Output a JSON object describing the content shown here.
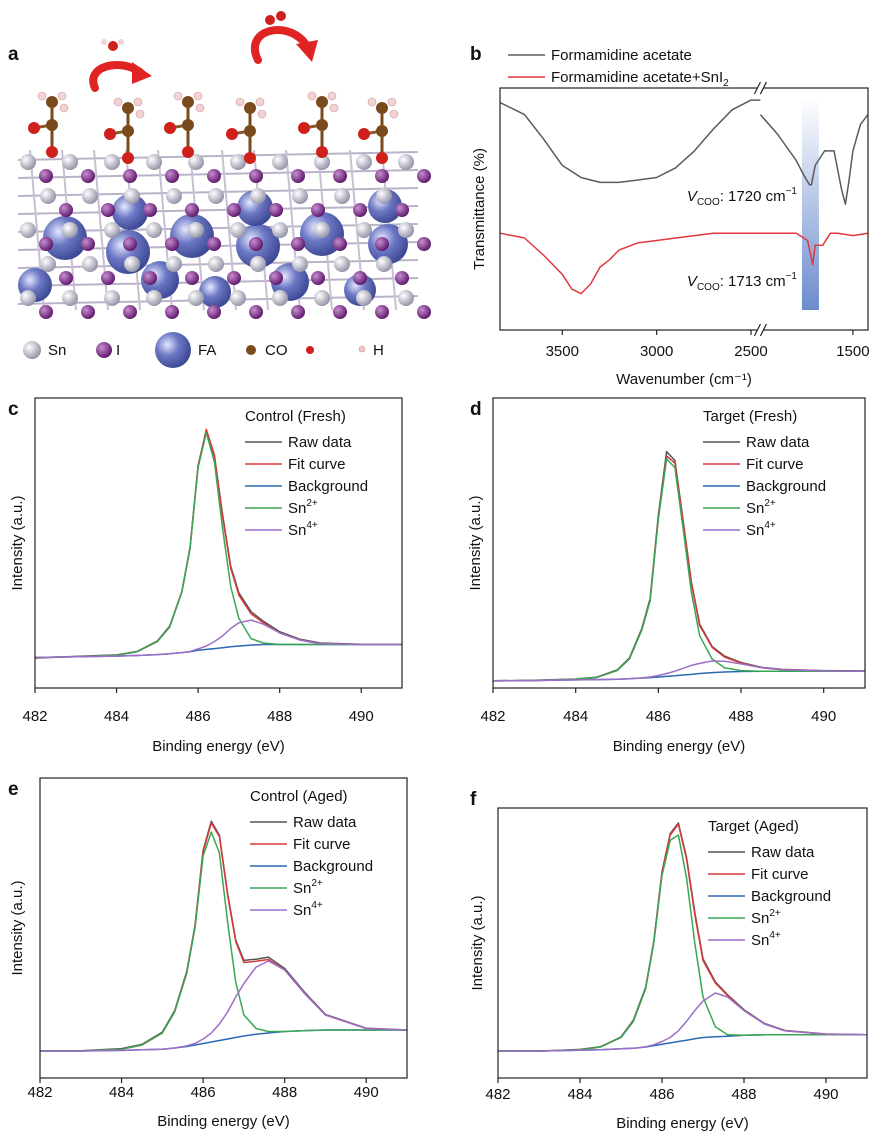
{
  "panel_a": {
    "label": "a",
    "legend": [
      "Sn",
      "I",
      "FA",
      "CO",
      "H"
    ]
  },
  "chart_data": [
    {
      "type": "line",
      "panel": "b",
      "ylabel": "Transmittance (%)",
      "xlabel": "Wavenumber (cm⁻¹)",
      "x_segments": [
        [
          3830,
          2450
        ],
        [
          1990,
          1420
        ]
      ],
      "xticks": [
        3500,
        3000,
        2500,
        1500
      ],
      "ylim": [
        0,
        100
      ],
      "band": [
        1770,
        1680
      ],
      "band_color": "#5b7fc8",
      "series": [
        {
          "name": "Formamidine acetate",
          "color": "#5a5a5a",
          "x": [
            3830,
            3700,
            3600,
            3500,
            3400,
            3300,
            3200,
            3100,
            3000,
            2900,
            2800,
            2700,
            2600,
            2500,
            2450,
            1990,
            1900,
            1800,
            1760,
            1730,
            1720,
            1700,
            1650,
            1600,
            1560,
            1540,
            1520,
            1500,
            1460,
            1420
          ],
          "values": [
            94,
            89,
            79,
            68,
            63,
            61,
            61,
            62,
            63,
            67,
            74,
            83,
            91,
            95,
            95,
            89,
            81,
            70,
            64,
            60,
            60,
            68,
            74,
            74,
            58,
            52,
            62,
            74,
            85,
            89
          ]
        },
        {
          "name": "Formamidine acetate+SnI",
          "name_sub": "2",
          "color": "#e0393e",
          "x": [
            3830,
            3700,
            3600,
            3500,
            3450,
            3400,
            3350,
            3300,
            3250,
            3200,
            3100,
            3000,
            2900,
            2700,
            2450,
            1990,
            1800,
            1740,
            1713,
            1700,
            1660,
            1620,
            1580,
            1500,
            1420
          ],
          "values": [
            40,
            38,
            31,
            23,
            17,
            15,
            19,
            26,
            29,
            33,
            36,
            37,
            38,
            40,
            40,
            40,
            40,
            37,
            27,
            35,
            35,
            40,
            40,
            39,
            40
          ]
        }
      ],
      "annotations": [
        {
          "symbol": "V",
          "sub": "COO",
          "text": ": 1720 cm",
          "sup": "−1"
        },
        {
          "symbol": "V",
          "sub": "COO",
          "text": ": 1713 cm",
          "sup": "−1"
        }
      ]
    },
    {
      "type": "line",
      "panel": "c",
      "title": "Control (Fresh)",
      "ylabel": "Intensity (a.u.)",
      "xlabel": "Binding energy (eV)",
      "xlim": [
        482,
        491
      ],
      "xticks": [
        482,
        484,
        486,
        488,
        490
      ],
      "ylim": [
        0,
        100
      ],
      "x": [
        482,
        483,
        484,
        484.5,
        485,
        485.3,
        485.6,
        485.8,
        486,
        486.2,
        486.4,
        486.6,
        486.8,
        487,
        487.3,
        487.6,
        488,
        488.5,
        489,
        490,
        491
      ],
      "series": [
        {
          "name": "Raw data",
          "color": "#555555",
          "values": [
            10.3,
            10.9,
            11.4,
            12.6,
            16.2,
            21.3,
            33.2,
            48.5,
            76.8,
            88.6,
            80,
            59.8,
            42,
            32.8,
            26.3,
            23,
            19.4,
            16.8,
            15.5,
            15.1,
            15
          ]
        },
        {
          "name": "Fit curve",
          "color": "#d9383a",
          "values": [
            10.5,
            10.8,
            11.3,
            12.5,
            16,
            21,
            33,
            48.1,
            76.5,
            89.2,
            80.4,
            59.1,
            41.3,
            32,
            25.6,
            22.5,
            19,
            16.5,
            15.3,
            15,
            15
          ]
        },
        {
          "name": "Background",
          "color": "#2b68b0",
          "values": [
            10.5,
            10.8,
            11,
            11.2,
            11.5,
            11.8,
            12.2,
            12.5,
            13,
            13.3,
            13.6,
            13.9,
            14.2,
            14.5,
            14.8,
            15,
            15,
            15,
            15,
            15,
            15
          ]
        },
        {
          "name": "Sn",
          "name_sup": "2+",
          "color": "#3aa655",
          "values": [
            10.5,
            10.8,
            11.3,
            12.5,
            16,
            21,
            33,
            48,
            76,
            88,
            78,
            55,
            35,
            24,
            17,
            15.5,
            15,
            15,
            15,
            15,
            15
          ]
        },
        {
          "name": "Sn",
          "name_sup": "4+",
          "color": "#9b6fc7",
          "values": [
            10.5,
            10.8,
            11,
            11.2,
            11.5,
            11.8,
            12.2,
            12.6,
            13.5,
            14.5,
            16,
            18,
            20.5,
            22.5,
            23.4,
            22,
            19,
            16.5,
            15.3,
            15,
            15
          ]
        }
      ]
    },
    {
      "type": "line",
      "panel": "d",
      "title": "Target (Fresh)",
      "ylabel": "Intensity (a.u.)",
      "xlabel": "Binding energy (eV)",
      "xlim": [
        482,
        491
      ],
      "xticks": [
        482,
        484,
        486,
        488,
        490
      ],
      "ylim": [
        0,
        100
      ],
      "x": [
        482,
        483,
        484,
        484.5,
        485,
        485.3,
        485.6,
        485.8,
        486,
        486.2,
        486.4,
        486.6,
        486.8,
        487,
        487.3,
        487.6,
        488,
        488.5,
        489,
        490,
        491
      ],
      "series": [
        {
          "name": "Raw data",
          "color": "#555555",
          "values": [
            2.4,
            2.7,
            3.1,
            3.7,
            6.2,
            10.3,
            20.5,
            30.8,
            59.5,
            81.5,
            78.5,
            57.8,
            36.5,
            22,
            14.3,
            11,
            8.8,
            7.1,
            6.4,
            6,
            5.9
          ]
        },
        {
          "name": "Fit curve",
          "color": "#d9383a",
          "values": [
            2.5,
            2.6,
            3,
            3.6,
            6,
            10,
            20.1,
            30.2,
            58.5,
            80,
            77.6,
            57.3,
            36.1,
            21.5,
            14,
            10.7,
            8.6,
            7,
            6.3,
            5.9,
            5.8
          ]
        },
        {
          "name": "Background",
          "color": "#2b68b0",
          "values": [
            2.5,
            2.6,
            2.8,
            2.9,
            3,
            3.2,
            3.4,
            3.6,
            3.8,
            4,
            4.2,
            4.5,
            4.7,
            5,
            5.3,
            5.5,
            5.7,
            5.8,
            5.8,
            5.8,
            5.8
          ]
        },
        {
          "name": "Sn",
          "name_sup": "2+",
          "color": "#3aa655",
          "values": [
            2.5,
            2.6,
            3,
            3.6,
            6,
            10,
            20,
            30,
            58,
            79,
            76,
            55,
            33,
            18,
            10,
            7,
            6,
            5.8,
            5.8,
            5.8,
            5.8
          ]
        },
        {
          "name": "Sn",
          "name_sup": "4+",
          "color": "#9b6fc7",
          "values": [
            2.5,
            2.6,
            2.8,
            2.9,
            3,
            3.2,
            3.5,
            3.8,
            4.3,
            5,
            5.8,
            6.8,
            7.8,
            8.5,
            9.3,
            9.2,
            8.3,
            7,
            6.3,
            5.9,
            5.8
          ]
        }
      ]
    },
    {
      "type": "line",
      "panel": "e",
      "title": "Control (Aged)",
      "ylabel": "Intensity (a.u.)",
      "xlabel": "Binding energy (eV)",
      "xlim": [
        482,
        491
      ],
      "xticks": [
        482,
        484,
        486,
        488,
        490
      ],
      "ylim": [
        0,
        100
      ],
      "x": [
        482,
        483,
        484,
        484.5,
        485,
        485.3,
        485.6,
        485.8,
        486,
        486.2,
        486.4,
        486.6,
        486.8,
        487,
        487.3,
        487.6,
        488,
        488.5,
        489,
        490,
        491
      ],
      "series": [
        {
          "name": "Raw data",
          "color": "#555555",
          "values": [
            8.9,
            9.1,
            9.8,
            11.2,
            15.3,
            22.4,
            35.6,
            50.8,
            75.9,
            85.6,
            80.9,
            61.5,
            46,
            39.2,
            39.6,
            40.3,
            36.5,
            28.4,
            21.2,
            16.6,
            16
          ]
        },
        {
          "name": "Fit curve",
          "color": "#d9383a",
          "values": [
            9,
            9,
            9.6,
            11,
            15,
            22,
            35.2,
            50.5,
            75.5,
            85,
            80.5,
            61,
            45.5,
            38.5,
            38.9,
            39.5,
            36,
            28,
            21,
            16.5,
            16
          ]
        },
        {
          "name": "Background",
          "color": "#2b68b0",
          "values": [
            9,
            9,
            9.2,
            9.4,
            9.6,
            10,
            10.5,
            11,
            11.5,
            12,
            12.5,
            13,
            13.5,
            14,
            14.6,
            15,
            15.5,
            15.8,
            16,
            16,
            16
          ]
        },
        {
          "name": "Sn",
          "name_sup": "2+",
          "color": "#3aa655",
          "values": [
            9,
            9,
            9.6,
            11,
            15,
            22,
            35,
            50,
            74,
            82,
            75,
            52,
            32,
            21,
            16.5,
            15.5,
            15.5,
            15.8,
            16,
            16,
            16
          ]
        },
        {
          "name": "Sn",
          "name_sup": "4+",
          "color": "#9b6fc7",
          "values": [
            9,
            9,
            9.2,
            9.4,
            9.6,
            10,
            10.7,
            11.5,
            13,
            15,
            18,
            22,
            27,
            31.5,
            37,
            39,
            36,
            28,
            21,
            16.5,
            16
          ]
        }
      ]
    },
    {
      "type": "line",
      "panel": "f",
      "title": "Target (Aged)",
      "ylabel": "Intensity (a.u.)",
      "xlabel": "Binding energy (eV)",
      "xlim": [
        482,
        491
      ],
      "xticks": [
        482,
        484,
        486,
        488,
        490
      ],
      "ylim": [
        0,
        100
      ],
      "x": [
        482,
        483,
        484,
        484.5,
        485,
        485.3,
        485.6,
        485.8,
        486,
        486.2,
        486.4,
        486.6,
        486.8,
        487,
        487.3,
        487.6,
        488,
        488.5,
        489,
        490,
        491
      ],
      "series": [
        {
          "name": "Raw data",
          "color": "#555555",
          "values": [
            10.1,
            9.9,
            10.6,
            11.6,
            15.2,
            21.4,
            33.5,
            50.6,
            76.4,
            90.5,
            94.5,
            81.6,
            61.4,
            44.2,
            35.6,
            30.8,
            25.3,
            20.2,
            17.6,
            16.3,
            16
          ]
        },
        {
          "name": "Fit curve",
          "color": "#d9383a",
          "values": [
            10,
            10,
            10.5,
            11.5,
            15,
            21,
            33.1,
            50.3,
            76,
            90,
            94,
            81,
            60.5,
            43.5,
            35.2,
            30.5,
            25,
            20,
            17.5,
            16.2,
            16
          ]
        },
        {
          "name": "Background",
          "color": "#2b68b0",
          "values": [
            10,
            10,
            10.3,
            10.5,
            10.8,
            11,
            11.5,
            12,
            12.5,
            13,
            13.5,
            14,
            14.5,
            15,
            15.3,
            15.5,
            15.8,
            16,
            16,
            16,
            16
          ]
        },
        {
          "name": "Sn",
          "name_sup": "2+",
          "color": "#3aa655",
          "values": [
            10,
            10,
            10.5,
            11.5,
            15,
            21,
            33,
            50,
            75,
            88,
            90,
            74,
            50,
            30,
            19,
            16,
            15.8,
            16,
            16,
            16,
            16
          ]
        },
        {
          "name": "Sn",
          "name_sup": "4+",
          "color": "#9b6fc7",
          "values": [
            10,
            10,
            10.3,
            10.5,
            10.8,
            11,
            11.6,
            12.3,
            13.5,
            15,
            17.5,
            21,
            25,
            28.5,
            31.5,
            30,
            25,
            20,
            17.5,
            16.2,
            16
          ]
        }
      ]
    }
  ]
}
